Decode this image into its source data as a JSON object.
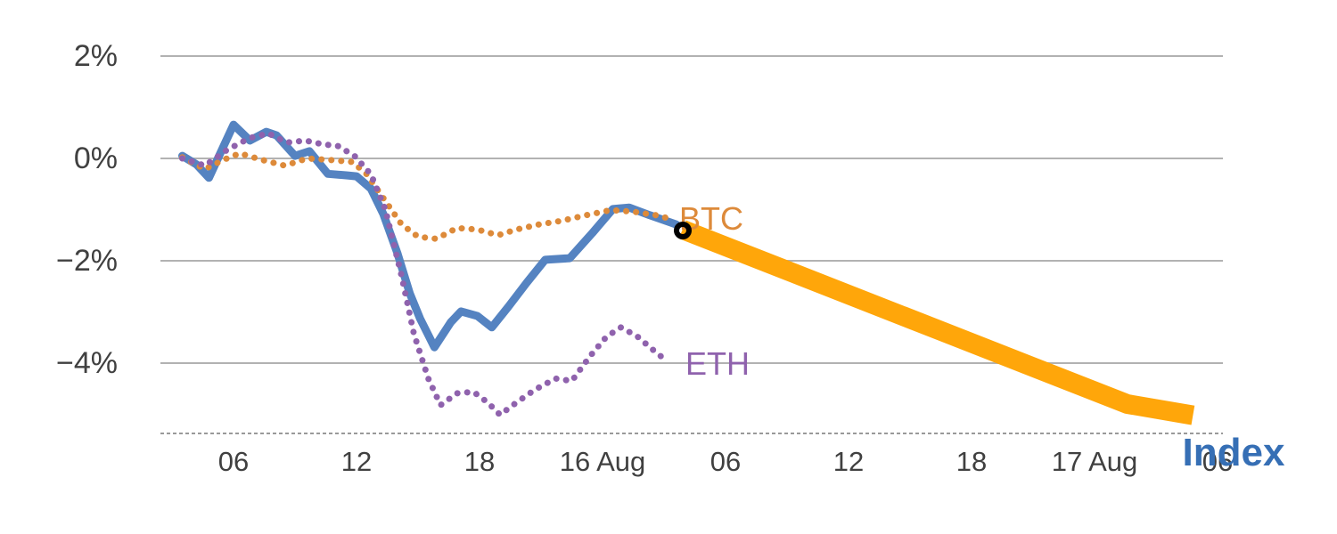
{
  "chart_data": {
    "type": "line",
    "title": "",
    "style": {
      "grid_color": "#b2b2b2",
      "axis_color": "#999999",
      "background": "#ffffff",
      "tick_text_color": "#404040"
    },
    "x_axis": {
      "range_hours": [
        2.4,
        54.3
      ],
      "ticks": [
        {
          "t": 6,
          "label": "06"
        },
        {
          "t": 12,
          "label": "12"
        },
        {
          "t": 18,
          "label": "18"
        },
        {
          "t": 24,
          "label": "16 Aug"
        },
        {
          "t": 30,
          "label": "06"
        },
        {
          "t": 36,
          "label": "12"
        },
        {
          "t": 42,
          "label": "18"
        },
        {
          "t": 48,
          "label": "17 Aug"
        },
        {
          "t": 54,
          "label": "06"
        }
      ]
    },
    "y_axis": {
      "unit": "%",
      "range": [
        -5.4,
        2.3
      ],
      "ticks": [
        {
          "v": 2,
          "label": "2%"
        },
        {
          "v": 0,
          "label": "0%"
        },
        {
          "v": -2,
          "label": "−2%"
        },
        {
          "v": -4,
          "label": "−4%"
        }
      ]
    },
    "series": [
      {
        "id": "index",
        "name": "Index",
        "color": "#5583c1",
        "label_color": "#366fb5",
        "style": "solid",
        "width": 9,
        "label": {
          "t": 54.8,
          "v": -5.76
        },
        "points": [
          {
            "t": 3.5,
            "v": 0.05
          },
          {
            "t": 4.2,
            "v": -0.12
          },
          {
            "t": 4.8,
            "v": -0.38
          },
          {
            "t": 6.0,
            "v": 0.66
          },
          {
            "t": 6.8,
            "v": 0.35
          },
          {
            "t": 7.6,
            "v": 0.52
          },
          {
            "t": 8.1,
            "v": 0.45
          },
          {
            "t": 9.0,
            "v": 0.05
          },
          {
            "t": 9.7,
            "v": 0.14
          },
          {
            "t": 10.6,
            "v": -0.3
          },
          {
            "t": 11.5,
            "v": -0.33
          },
          {
            "t": 12.0,
            "v": -0.35
          },
          {
            "t": 12.7,
            "v": -0.59
          },
          {
            "t": 13.3,
            "v": -1.08
          },
          {
            "t": 14.0,
            "v": -1.86
          },
          {
            "t": 14.6,
            "v": -2.64
          },
          {
            "t": 15.1,
            "v": -3.13
          },
          {
            "t": 15.8,
            "v": -3.69
          },
          {
            "t": 16.6,
            "v": -3.2
          },
          {
            "t": 17.1,
            "v": -2.99
          },
          {
            "t": 17.9,
            "v": -3.08
          },
          {
            "t": 18.6,
            "v": -3.3
          },
          {
            "t": 19.4,
            "v": -2.9
          },
          {
            "t": 20.3,
            "v": -2.43
          },
          {
            "t": 21.2,
            "v": -1.98
          },
          {
            "t": 22.4,
            "v": -1.95
          },
          {
            "t": 23.5,
            "v": -1.46
          },
          {
            "t": 24.5,
            "v": -0.99
          },
          {
            "t": 25.3,
            "v": -0.96
          },
          {
            "t": 26.3,
            "v": -1.11
          },
          {
            "t": 27.6,
            "v": -1.29
          }
        ]
      },
      {
        "id": "btc",
        "name": "BTC",
        "color": "#dd8a3a",
        "label_color": "#dd8a3a",
        "style": "dotted",
        "width": 7,
        "label": {
          "t": 29.3,
          "v": -1.18
        },
        "points": [
          {
            "t": 3.5,
            "v": 0.02
          },
          {
            "t": 4.6,
            "v": -0.21
          },
          {
            "t": 5.5,
            "v": -0.03
          },
          {
            "t": 6.3,
            "v": 0.1
          },
          {
            "t": 7.4,
            "v": -0.03
          },
          {
            "t": 8.5,
            "v": -0.14
          },
          {
            "t": 9.6,
            "v": 0.0
          },
          {
            "t": 10.7,
            "v": -0.03
          },
          {
            "t": 11.8,
            "v": -0.07
          },
          {
            "t": 12.5,
            "v": -0.31
          },
          {
            "t": 13.3,
            "v": -0.77
          },
          {
            "t": 14.2,
            "v": -1.29
          },
          {
            "t": 15.0,
            "v": -1.53
          },
          {
            "t": 15.9,
            "v": -1.57
          },
          {
            "t": 16.9,
            "v": -1.36
          },
          {
            "t": 17.9,
            "v": -1.39
          },
          {
            "t": 18.9,
            "v": -1.5
          },
          {
            "t": 19.8,
            "v": -1.39
          },
          {
            "t": 20.9,
            "v": -1.29
          },
          {
            "t": 22.0,
            "v": -1.22
          },
          {
            "t": 23.2,
            "v": -1.11
          },
          {
            "t": 24.4,
            "v": -1.01
          },
          {
            "t": 25.5,
            "v": -1.04
          },
          {
            "t": 26.6,
            "v": -1.11
          },
          {
            "t": 27.5,
            "v": -1.2
          }
        ]
      },
      {
        "id": "eth",
        "name": "ETH",
        "color": "#8f62ad",
        "label_color": "#8f62ad",
        "style": "dotted",
        "width": 7,
        "label": {
          "t": 29.6,
          "v": -4.02
        },
        "points": [
          {
            "t": 3.5,
            "v": 0.0
          },
          {
            "t": 4.6,
            "v": -0.14
          },
          {
            "t": 5.7,
            "v": 0.17
          },
          {
            "t": 6.8,
            "v": 0.4
          },
          {
            "t": 7.7,
            "v": 0.49
          },
          {
            "t": 8.6,
            "v": 0.31
          },
          {
            "t": 9.5,
            "v": 0.35
          },
          {
            "t": 10.3,
            "v": 0.28
          },
          {
            "t": 11.1,
            "v": 0.24
          },
          {
            "t": 11.9,
            "v": 0.05
          },
          {
            "t": 12.7,
            "v": -0.31
          },
          {
            "t": 13.4,
            "v": -0.99
          },
          {
            "t": 14.2,
            "v": -2.3
          },
          {
            "t": 14.8,
            "v": -3.43
          },
          {
            "t": 15.5,
            "v": -4.3
          },
          {
            "t": 16.1,
            "v": -4.82
          },
          {
            "t": 16.9,
            "v": -4.59
          },
          {
            "t": 17.7,
            "v": -4.56
          },
          {
            "t": 18.4,
            "v": -4.77
          },
          {
            "t": 19.0,
            "v": -5.01
          },
          {
            "t": 19.8,
            "v": -4.77
          },
          {
            "t": 20.7,
            "v": -4.52
          },
          {
            "t": 21.7,
            "v": -4.3
          },
          {
            "t": 22.5,
            "v": -4.35
          },
          {
            "t": 23.4,
            "v": -3.86
          },
          {
            "t": 24.2,
            "v": -3.48
          },
          {
            "t": 24.9,
            "v": -3.3
          },
          {
            "t": 25.7,
            "v": -3.48
          },
          {
            "t": 26.4,
            "v": -3.72
          },
          {
            "t": 27.1,
            "v": -3.95
          }
        ]
      }
    ],
    "overlay": {
      "drag_line": {
        "color": "#ffa60a",
        "width": 22,
        "points": [
          {
            "t": 27.9,
            "v": -1.39
          },
          {
            "t": 49.6,
            "v": -4.8
          },
          {
            "t": 52.8,
            "v": -5.02
          }
        ]
      },
      "marker": {
        "shape": "open-circle",
        "color": "#000000",
        "t": 27.9,
        "v": -1.4
      }
    }
  }
}
